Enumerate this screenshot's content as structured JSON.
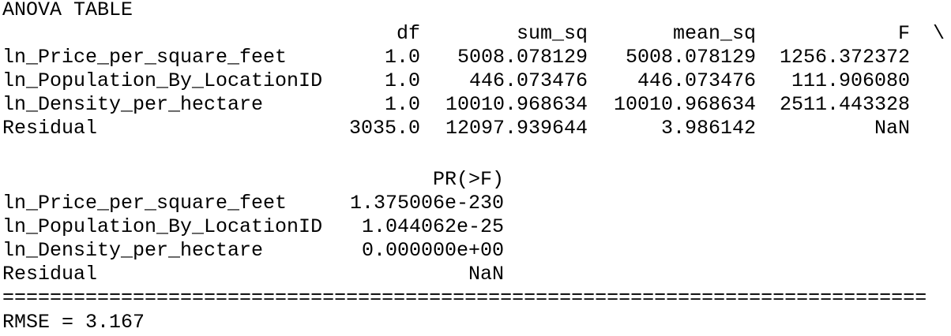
{
  "title": "ANOVA TABLE",
  "table1": {
    "columns": [
      "df",
      "sum_sq",
      "mean_sq",
      "F"
    ],
    "continuation": "\\",
    "rows": [
      {
        "label": "ln_Price_per_square_feet",
        "cells": [
          "1.0",
          "5008.078129",
          "5008.078129",
          "1256.372372"
        ]
      },
      {
        "label": "ln_Population_By_LocationID",
        "cells": [
          "1.0",
          "446.073476",
          "446.073476",
          "111.906080"
        ]
      },
      {
        "label": "ln_Density_per_hectare",
        "cells": [
          "1.0",
          "10010.968634",
          "10010.968634",
          "2511.443328"
        ]
      },
      {
        "label": "Residual",
        "cells": [
          "3035.0",
          "12097.939644",
          "3.986142",
          "NaN"
        ]
      }
    ]
  },
  "table2": {
    "columns": [
      "PR(>F)"
    ],
    "rows": [
      {
        "label": "ln_Price_per_square_feet",
        "cells": [
          "1.375006e-230"
        ]
      },
      {
        "label": "ln_Population_By_LocationID",
        "cells": [
          "1.044062e-25"
        ]
      },
      {
        "label": "ln_Density_per_hectare",
        "cells": [
          "0.000000e+00"
        ]
      },
      {
        "label": "Residual",
        "cells": [
          "NaN"
        ]
      }
    ]
  },
  "separator": "==============================================================================",
  "rmse": "RMSE = 3.167"
}
